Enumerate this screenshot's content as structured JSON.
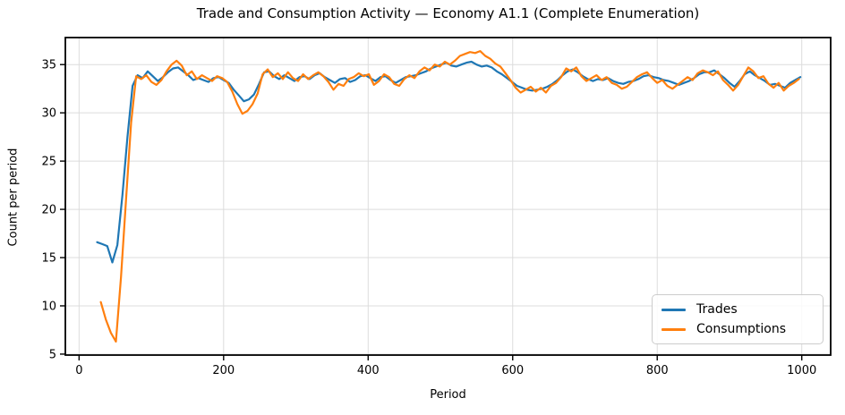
{
  "chart_data": {
    "type": "line",
    "title": "Trade and Consumption Activity — Economy A1.1 (Complete Enumeration)",
    "xlabel": "Period",
    "ylabel": "Count per period",
    "xlim": [
      -19,
      1040
    ],
    "ylim": [
      4.9,
      37.8
    ],
    "xticks": [
      0,
      200,
      400,
      600,
      800,
      1000
    ],
    "yticks": [
      5,
      10,
      15,
      20,
      25,
      30,
      35
    ],
    "grid": true,
    "grid_color": "#dcdcdc",
    "spine_color": "#000000",
    "legend_position": "lower right",
    "series": [
      {
        "name": "Trades",
        "color": "#1f77b4",
        "points": [
          [
            25,
            16.6
          ],
          [
            32,
            16.4
          ],
          [
            39,
            16.2
          ],
          [
            46,
            14.5
          ],
          [
            53,
            16.3
          ],
          [
            60,
            21.5
          ],
          [
            67,
            27.5
          ],
          [
            74,
            32.8
          ],
          [
            81,
            33.9
          ],
          [
            88,
            33.6
          ],
          [
            95,
            34.3
          ],
          [
            102,
            33.8
          ],
          [
            109,
            33.3
          ],
          [
            116,
            33.7
          ],
          [
            123,
            34.2
          ],
          [
            130,
            34.6
          ],
          [
            137,
            34.7
          ],
          [
            144,
            34.3
          ],
          [
            151,
            33.9
          ],
          [
            158,
            33.4
          ],
          [
            165,
            33.6
          ],
          [
            172,
            33.4
          ],
          [
            179,
            33.2
          ],
          [
            186,
            33.6
          ],
          [
            193,
            33.7
          ],
          [
            200,
            33.4
          ],
          [
            207,
            33.1
          ],
          [
            214,
            32.4
          ],
          [
            221,
            31.8
          ],
          [
            228,
            31.2
          ],
          [
            235,
            31.4
          ],
          [
            242,
            31.9
          ],
          [
            249,
            33.0
          ],
          [
            256,
            34.2
          ],
          [
            263,
            34.3
          ],
          [
            270,
            33.8
          ],
          [
            277,
            33.5
          ],
          [
            284,
            33.9
          ],
          [
            291,
            33.6
          ],
          [
            298,
            33.3
          ],
          [
            305,
            33.7
          ],
          [
            312,
            33.8
          ],
          [
            319,
            33.5
          ],
          [
            326,
            33.9
          ],
          [
            333,
            34.1
          ],
          [
            340,
            33.7
          ],
          [
            347,
            33.4
          ],
          [
            354,
            33.1
          ],
          [
            361,
            33.5
          ],
          [
            368,
            33.6
          ],
          [
            375,
            33.2
          ],
          [
            382,
            33.4
          ],
          [
            389,
            33.8
          ],
          [
            396,
            33.9
          ],
          [
            403,
            33.6
          ],
          [
            410,
            33.3
          ],
          [
            417,
            33.7
          ],
          [
            424,
            33.8
          ],
          [
            431,
            33.4
          ],
          [
            438,
            33.1
          ],
          [
            445,
            33.4
          ],
          [
            452,
            33.7
          ],
          [
            459,
            33.8
          ],
          [
            466,
            33.9
          ],
          [
            473,
            34.1
          ],
          [
            480,
            34.3
          ],
          [
            487,
            34.6
          ],
          [
            494,
            34.8
          ],
          [
            501,
            35.0
          ],
          [
            508,
            35.2
          ],
          [
            515,
            34.9
          ],
          [
            522,
            34.8
          ],
          [
            529,
            35.0
          ],
          [
            536,
            35.2
          ],
          [
            543,
            35.3
          ],
          [
            550,
            35.0
          ],
          [
            557,
            34.8
          ],
          [
            564,
            34.9
          ],
          [
            571,
            34.7
          ],
          [
            578,
            34.3
          ],
          [
            585,
            34.0
          ],
          [
            592,
            33.6
          ],
          [
            599,
            33.2
          ],
          [
            606,
            32.8
          ],
          [
            613,
            32.6
          ],
          [
            620,
            32.4
          ],
          [
            627,
            32.3
          ],
          [
            634,
            32.4
          ],
          [
            641,
            32.5
          ],
          [
            648,
            32.7
          ],
          [
            655,
            33.0
          ],
          [
            662,
            33.4
          ],
          [
            669,
            33.9
          ],
          [
            676,
            34.3
          ],
          [
            683,
            34.5
          ],
          [
            690,
            34.2
          ],
          [
            697,
            33.8
          ],
          [
            704,
            33.5
          ],
          [
            711,
            33.3
          ],
          [
            718,
            33.5
          ],
          [
            725,
            33.4
          ],
          [
            732,
            33.6
          ],
          [
            739,
            33.3
          ],
          [
            746,
            33.1
          ],
          [
            753,
            33.0
          ],
          [
            760,
            33.2
          ],
          [
            767,
            33.3
          ],
          [
            774,
            33.5
          ],
          [
            781,
            33.8
          ],
          [
            788,
            33.9
          ],
          [
            795,
            33.7
          ],
          [
            802,
            33.6
          ],
          [
            809,
            33.4
          ],
          [
            816,
            33.3
          ],
          [
            823,
            33.1
          ],
          [
            830,
            32.9
          ],
          [
            837,
            33.1
          ],
          [
            844,
            33.3
          ],
          [
            851,
            33.6
          ],
          [
            858,
            34.0
          ],
          [
            865,
            34.2
          ],
          [
            872,
            34.2
          ],
          [
            879,
            34.4
          ],
          [
            886,
            34.0
          ],
          [
            893,
            33.6
          ],
          [
            900,
            33.1
          ],
          [
            907,
            32.7
          ],
          [
            914,
            33.3
          ],
          [
            921,
            34.0
          ],
          [
            928,
            34.3
          ],
          [
            935,
            33.9
          ],
          [
            942,
            33.6
          ],
          [
            949,
            33.3
          ],
          [
            956,
            32.9
          ],
          [
            963,
            33.0
          ],
          [
            970,
            32.8
          ],
          [
            977,
            32.6
          ],
          [
            984,
            33.1
          ],
          [
            991,
            33.4
          ],
          [
            998,
            33.7
          ]
        ]
      },
      {
        "name": "Consumptions",
        "color": "#ff7f0e",
        "points": [
          [
            30,
            10.4
          ],
          [
            37,
            8.6
          ],
          [
            44,
            7.2
          ],
          [
            51,
            6.3
          ],
          [
            58,
            13.0
          ],
          [
            65,
            21.0
          ],
          [
            72,
            29.0
          ],
          [
            79,
            33.8
          ],
          [
            86,
            33.5
          ],
          [
            93,
            33.9
          ],
          [
            100,
            33.2
          ],
          [
            107,
            32.9
          ],
          [
            114,
            33.4
          ],
          [
            121,
            34.3
          ],
          [
            128,
            35.0
          ],
          [
            135,
            35.4
          ],
          [
            142,
            34.9
          ],
          [
            149,
            33.9
          ],
          [
            156,
            34.3
          ],
          [
            163,
            33.5
          ],
          [
            170,
            33.9
          ],
          [
            177,
            33.6
          ],
          [
            184,
            33.3
          ],
          [
            191,
            33.8
          ],
          [
            198,
            33.6
          ],
          [
            205,
            33.2
          ],
          [
            212,
            32.2
          ],
          [
            219,
            30.9
          ],
          [
            226,
            29.9
          ],
          [
            233,
            30.2
          ],
          [
            240,
            30.9
          ],
          [
            247,
            32.0
          ],
          [
            254,
            34.0
          ],
          [
            261,
            34.5
          ],
          [
            268,
            33.7
          ],
          [
            275,
            34.1
          ],
          [
            282,
            33.5
          ],
          [
            289,
            34.2
          ],
          [
            296,
            33.6
          ],
          [
            303,
            33.3
          ],
          [
            310,
            34.0
          ],
          [
            317,
            33.5
          ],
          [
            324,
            33.9
          ],
          [
            331,
            34.2
          ],
          [
            338,
            33.8
          ],
          [
            345,
            33.2
          ],
          [
            352,
            32.4
          ],
          [
            359,
            33.0
          ],
          [
            366,
            32.8
          ],
          [
            373,
            33.5
          ],
          [
            380,
            33.7
          ],
          [
            387,
            34.1
          ],
          [
            394,
            33.8
          ],
          [
            401,
            34.0
          ],
          [
            408,
            32.9
          ],
          [
            415,
            33.3
          ],
          [
            422,
            34.0
          ],
          [
            429,
            33.7
          ],
          [
            436,
            33.0
          ],
          [
            443,
            32.8
          ],
          [
            450,
            33.5
          ],
          [
            457,
            33.9
          ],
          [
            464,
            33.6
          ],
          [
            471,
            34.3
          ],
          [
            478,
            34.7
          ],
          [
            485,
            34.4
          ],
          [
            492,
            35.0
          ],
          [
            499,
            34.8
          ],
          [
            506,
            35.3
          ],
          [
            513,
            35.0
          ],
          [
            520,
            35.4
          ],
          [
            527,
            35.9
          ],
          [
            534,
            36.1
          ],
          [
            541,
            36.3
          ],
          [
            548,
            36.2
          ],
          [
            555,
            36.4
          ],
          [
            562,
            35.9
          ],
          [
            569,
            35.6
          ],
          [
            576,
            35.1
          ],
          [
            583,
            34.8
          ],
          [
            590,
            34.1
          ],
          [
            597,
            33.4
          ],
          [
            604,
            32.6
          ],
          [
            611,
            32.1
          ],
          [
            618,
            32.4
          ],
          [
            625,
            32.7
          ],
          [
            632,
            32.2
          ],
          [
            639,
            32.6
          ],
          [
            646,
            32.1
          ],
          [
            653,
            32.8
          ],
          [
            660,
            33.1
          ],
          [
            667,
            33.7
          ],
          [
            674,
            34.6
          ],
          [
            681,
            34.3
          ],
          [
            688,
            34.7
          ],
          [
            695,
            33.8
          ],
          [
            702,
            33.3
          ],
          [
            709,
            33.6
          ],
          [
            716,
            33.9
          ],
          [
            723,
            33.4
          ],
          [
            730,
            33.7
          ],
          [
            737,
            33.1
          ],
          [
            744,
            32.9
          ],
          [
            751,
            32.5
          ],
          [
            758,
            32.7
          ],
          [
            765,
            33.2
          ],
          [
            772,
            33.7
          ],
          [
            779,
            34.0
          ],
          [
            786,
            34.2
          ],
          [
            793,
            33.6
          ],
          [
            800,
            33.1
          ],
          [
            807,
            33.4
          ],
          [
            814,
            32.8
          ],
          [
            821,
            32.5
          ],
          [
            828,
            32.9
          ],
          [
            835,
            33.3
          ],
          [
            842,
            33.7
          ],
          [
            849,
            33.4
          ],
          [
            856,
            34.1
          ],
          [
            863,
            34.4
          ],
          [
            870,
            34.2
          ],
          [
            877,
            33.9
          ],
          [
            884,
            34.3
          ],
          [
            891,
            33.4
          ],
          [
            898,
            32.9
          ],
          [
            905,
            32.3
          ],
          [
            912,
            32.9
          ],
          [
            919,
            33.8
          ],
          [
            926,
            34.7
          ],
          [
            933,
            34.3
          ],
          [
            940,
            33.6
          ],
          [
            947,
            33.8
          ],
          [
            954,
            33.0
          ],
          [
            961,
            32.6
          ],
          [
            968,
            33.1
          ],
          [
            975,
            32.3
          ],
          [
            982,
            32.8
          ],
          [
            989,
            33.1
          ],
          [
            996,
            33.5
          ]
        ]
      }
    ]
  }
}
